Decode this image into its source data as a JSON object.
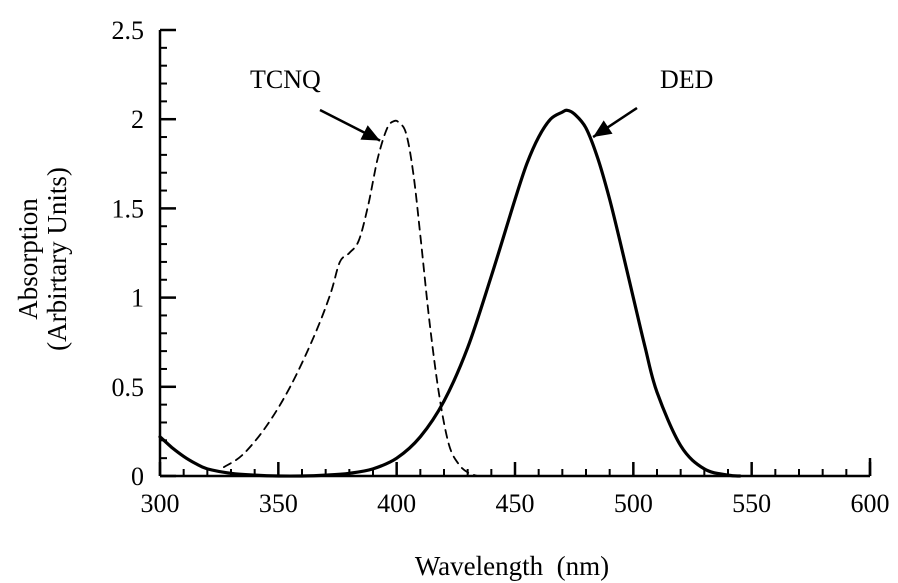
{
  "chart_data": {
    "type": "line",
    "title": "",
    "xlabel": "Wavelength  (nm)",
    "ylabel_lines": [
      "Absorption",
      "(Arbirtary Units)"
    ],
    "xlim": [
      300,
      600
    ],
    "ylim": [
      0,
      2.5
    ],
    "x_ticks": [
      300,
      350,
      400,
      450,
      500,
      550,
      600
    ],
    "x_tick_labels": [
      "300",
      "350",
      "400",
      "450",
      "500",
      "550",
      "600"
    ],
    "y_ticks": [
      0,
      0.5,
      1,
      1.5,
      2,
      2.5
    ],
    "y_tick_labels": [
      "0",
      "0.5",
      "1",
      "1.5",
      "2",
      "2.5"
    ],
    "x_minor_step": 10,
    "y_minor_step": 0.1,
    "grid": false,
    "legend": "none",
    "series": [
      {
        "name": "TCNQ",
        "style": "dashed",
        "color": "#000000",
        "x": [
          327,
          335,
          345,
          355,
          365,
          372,
          376,
          380,
          384,
          388,
          392,
          396,
          399,
          401,
          404,
          407,
          410,
          414,
          418,
          422,
          426,
          430,
          434
        ],
        "y": [
          0.05,
          0.12,
          0.28,
          0.5,
          0.78,
          1.02,
          1.2,
          1.25,
          1.32,
          1.52,
          1.78,
          1.95,
          1.99,
          1.98,
          1.92,
          1.7,
          1.35,
          0.85,
          0.45,
          0.18,
          0.07,
          0.02,
          0.0
        ]
      },
      {
        "name": "DED",
        "style": "solid",
        "color": "#000000",
        "x": [
          300,
          305,
          310,
          315,
          320,
          330,
          340,
          350,
          360,
          370,
          380,
          390,
          400,
          410,
          420,
          430,
          440,
          450,
          455,
          460,
          465,
          470,
          472,
          475,
          480,
          485,
          490,
          495,
          500,
          505,
          510,
          520,
          530,
          540,
          545
        ],
        "y": [
          0.22,
          0.16,
          0.11,
          0.07,
          0.04,
          0.015,
          0.005,
          0.0,
          0.0,
          0.005,
          0.015,
          0.04,
          0.1,
          0.22,
          0.42,
          0.72,
          1.12,
          1.55,
          1.75,
          1.9,
          2.0,
          2.04,
          2.05,
          2.03,
          1.95,
          1.78,
          1.55,
          1.28,
          1.0,
          0.72,
          0.47,
          0.17,
          0.04,
          0.005,
          0.0
        ]
      }
    ],
    "annotations": [
      {
        "text": "TCNQ",
        "points_to": "TCNQ",
        "arrow_tip": [
          393,
          1.88
        ]
      },
      {
        "text": "DED",
        "points_to": "DED",
        "arrow_tip": [
          483,
          1.9
        ]
      }
    ]
  }
}
